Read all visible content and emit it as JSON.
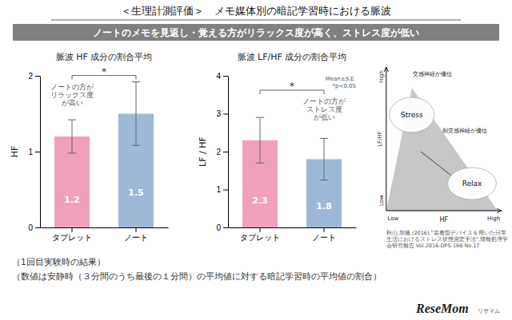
{
  "title": "＜生理計測評価＞　メモ媒体別の暗記学習時における脈波",
  "subtitle": "ノートのメモを見返し・覚える方がリラックス度が高く、ストレス度が低い",
  "chart_data": [
    {
      "type": "bar",
      "title": "脈波 HF 成分の割合平均",
      "categories": [
        "タブレット",
        "ノート"
      ],
      "values": [
        1.2,
        1.5
      ],
      "errors": [
        0.22,
        0.42
      ],
      "colors": [
        "#f0a0bc",
        "#a0b8d8"
      ],
      "ylim": [
        0,
        2
      ],
      "yticks": [
        0,
        1,
        2
      ],
      "ylabel": "HF",
      "data_labels": true,
      "significance_label": "*",
      "annotation": "ノートの方が\nリラックス度\nが高い"
    },
    {
      "type": "bar",
      "title": "脈波 LF/HF 成分の割合平均",
      "categories": [
        "タブレット",
        "ノート"
      ],
      "values": [
        2.3,
        1.8
      ],
      "errors": [
        0.6,
        0.55
      ],
      "colors": [
        "#f0a0bc",
        "#a0b8d8"
      ],
      "ylim": [
        0,
        4
      ],
      "yticks": [
        0,
        1,
        2,
        3,
        4
      ],
      "ylabel": "LF / HF",
      "data_labels": true,
      "significance_label": "*",
      "annotation": "ノートの方が\nストレス度\nが低い",
      "note": "Mean±S.E.\n*p<0.05"
    }
  ],
  "diagram": {
    "x_label": "HF",
    "y_label": "LF/HF",
    "low": "Low",
    "high": "High",
    "stress": "Stress",
    "relax": "Relax",
    "upper_note": "交感神経が優位",
    "lower_note": "副交感神経が優位",
    "reference": "秋山,加藤,(2016),\"装着型デバイスを用いた日常\n生活におけるストレス状態測定手法\",情報処理学\n会研究報告 Vol.2016-DPS-166 No.17"
  },
  "footnotes": [
    "（1回目実験時の結果）",
    "（数値は安静時（３分間のうち最後の１分間）の平均値に対する暗記学習時の平均値の割合）"
  ],
  "credit": [
    "ReseMom",
    "リサマム"
  ]
}
